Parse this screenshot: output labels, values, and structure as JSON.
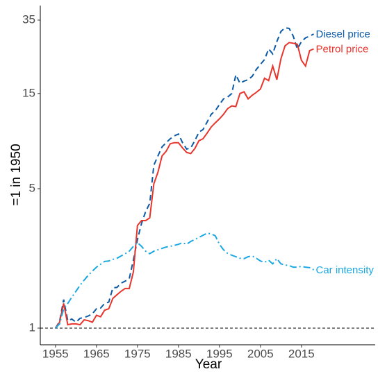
{
  "chart_data": {
    "type": "line",
    "x_label": "Year",
    "y_label": "=1 in 1950",
    "x": [
      1955,
      1956,
      1957,
      1958,
      1959,
      1960,
      1961,
      1962,
      1963,
      1964,
      1965,
      1966,
      1967,
      1968,
      1969,
      1970,
      1971,
      1972,
      1973,
      1974,
      1975,
      1976,
      1977,
      1978,
      1979,
      1980,
      1981,
      1982,
      1983,
      1984,
      1985,
      1986,
      1987,
      1988,
      1989,
      1990,
      1991,
      1992,
      1993,
      1994,
      1995,
      1996,
      1997,
      1998,
      1999,
      2000,
      2001,
      2002,
      2003,
      2004,
      2005,
      2006,
      2007,
      2008,
      2009,
      2010,
      2011,
      2012,
      2013,
      2014,
      2015,
      2016,
      2017,
      2018
    ],
    "series": [
      {
        "name": "Diesel price",
        "color": "#0b5aa5",
        "dash": "8 5",
        "values": [
          1,
          1.08,
          1.39,
          1.09,
          1.11,
          1.07,
          1.12,
          1.13,
          1.15,
          1.18,
          1.25,
          1.26,
          1.33,
          1.35,
          1.59,
          1.6,
          1.68,
          1.72,
          1.77,
          2.19,
          2.78,
          3.35,
          3.84,
          4.22,
          6.56,
          7.3,
          8.1,
          8.5,
          8.9,
          9.2,
          9.4,
          8.5,
          7.9,
          8.0,
          8.7,
          9.6,
          9.9,
          10.8,
          11.8,
          12.3,
          13.2,
          14.1,
          14.4,
          15.0,
          18.6,
          16.9,
          17.3,
          17.6,
          18.3,
          19.8,
          21.0,
          22.2,
          25.1,
          23.7,
          27.3,
          30.7,
          32.0,
          31.8,
          29.1,
          25.1,
          27.3,
          28.5,
          29.1,
          29.8
        ]
      },
      {
        "name": "Petrol price",
        "color": "#e8352c",
        "dash": "none",
        "values": [
          1,
          1.07,
          1.33,
          1.04,
          1.05,
          1.05,
          1.04,
          1.1,
          1.09,
          1.07,
          1.16,
          1.14,
          1.23,
          1.25,
          1.41,
          1.47,
          1.53,
          1.58,
          1.58,
          1.91,
          3.27,
          3.46,
          3.46,
          3.57,
          5.29,
          6.05,
          7.3,
          7.7,
          8.4,
          8.5,
          8.5,
          8.0,
          7.6,
          7.5,
          7.95,
          8.7,
          8.9,
          9.5,
          10.2,
          10.7,
          11.2,
          11.8,
          12.6,
          13.0,
          12.9,
          15.0,
          15.3,
          14.1,
          14.7,
          15.2,
          15.8,
          17.9,
          17.4,
          20.6,
          17.6,
          22.4,
          26.0,
          27.0,
          26.8,
          26.5,
          22.0,
          20.6,
          24.6,
          25.1
        ]
      },
      {
        "name": "Car intensity",
        "color": "#1aa8e2",
        "dash": "10 4 2 4",
        "values": [
          1,
          1.05,
          1.25,
          1.33,
          1.43,
          1.53,
          1.64,
          1.74,
          1.84,
          1.93,
          2.02,
          2.09,
          2.16,
          2.17,
          2.21,
          2.24,
          2.3,
          2.36,
          2.43,
          2.57,
          2.68,
          2.57,
          2.43,
          2.36,
          2.43,
          2.47,
          2.51,
          2.55,
          2.57,
          2.6,
          2.63,
          2.68,
          2.63,
          2.72,
          2.78,
          2.85,
          2.92,
          2.99,
          2.97,
          2.9,
          2.63,
          2.47,
          2.37,
          2.32,
          2.28,
          2.24,
          2.23,
          2.28,
          2.3,
          2.24,
          2.17,
          2.14,
          2.19,
          2.1,
          2.23,
          2.1,
          2.07,
          2.06,
          2.02,
          2.02,
          2.04,
          2.02,
          2.01,
          1.96
        ]
      }
    ],
    "reference_line": 1,
    "log_y": true,
    "xlim": [
      1951.3,
      2033
    ],
    "ylim": [
      0.825,
      41.4
    ],
    "xticks": [
      1955,
      1965,
      1975,
      1985,
      1995,
      2005,
      2015
    ],
    "yticks": [
      1,
      5,
      15,
      35
    ]
  }
}
